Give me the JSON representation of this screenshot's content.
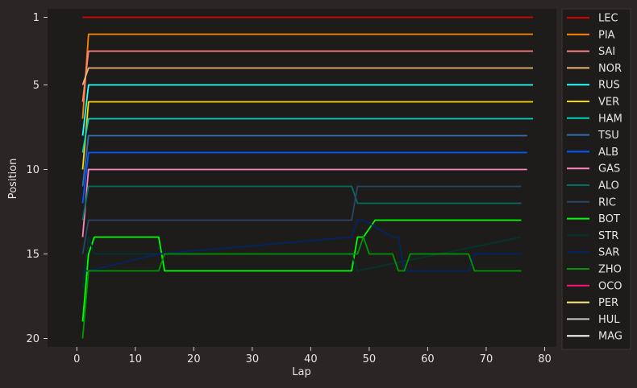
{
  "chart_data": {
    "type": "line",
    "title": "",
    "xlabel": "Lap",
    "ylabel": "Position",
    "xlim": [
      -5,
      82
    ],
    "ylim": [
      20.5,
      0.5
    ],
    "y_inverted": true,
    "xticks": [
      0,
      10,
      20,
      30,
      40,
      50,
      60,
      70,
      80
    ],
    "yticks": [
      1,
      5,
      10,
      15,
      20
    ],
    "grid": false,
    "legend": "outside-right",
    "background": "#1e1c1b",
    "figure_background": "#292625",
    "series": [
      {
        "name": "LEC",
        "color": "#dc0000",
        "points": [
          [
            1,
            1
          ],
          [
            78,
            1
          ]
        ]
      },
      {
        "name": "PIA",
        "color": "#ff8700",
        "points": [
          [
            1,
            7
          ],
          [
            2,
            2
          ],
          [
            78,
            2
          ]
        ]
      },
      {
        "name": "SAI",
        "color": "#ff8181",
        "points": [
          [
            1,
            6
          ],
          [
            2,
            3
          ],
          [
            78,
            3
          ]
        ]
      },
      {
        "name": "NOR",
        "color": "#eeb370",
        "points": [
          [
            1,
            5
          ],
          [
            2,
            4
          ],
          [
            78,
            4
          ]
        ]
      },
      {
        "name": "RUS",
        "color": "#24ffff",
        "points": [
          [
            1,
            8
          ],
          [
            2,
            5
          ],
          [
            78,
            5
          ]
        ]
      },
      {
        "name": "VER",
        "color": "#fcd700",
        "points": [
          [
            1,
            10
          ],
          [
            2,
            6
          ],
          [
            78,
            6
          ]
        ]
      },
      {
        "name": "HAM",
        "color": "#00d2be",
        "points": [
          [
            1,
            9
          ],
          [
            2,
            7
          ],
          [
            78,
            7
          ]
        ]
      },
      {
        "name": "TSU",
        "color": "#356cac",
        "points": [
          [
            1,
            11
          ],
          [
            2,
            8
          ],
          [
            77,
            8
          ]
        ]
      },
      {
        "name": "ALB",
        "color": "#005aff",
        "points": [
          [
            1,
            12
          ],
          [
            2,
            9
          ],
          [
            77,
            9
          ]
        ]
      },
      {
        "name": "GAS",
        "color": "#fe86bc",
        "points": [
          [
            1,
            14
          ],
          [
            2,
            10
          ],
          [
            77,
            10
          ]
        ]
      },
      {
        "name": "ALO",
        "color": "#006f62",
        "points": [
          [
            1,
            13
          ],
          [
            2,
            11
          ],
          [
            47,
            11
          ],
          [
            48,
            12
          ],
          [
            76,
            12
          ]
        ]
      },
      {
        "name": "RIC",
        "color": "#2b4562",
        "points": [
          [
            1,
            15
          ],
          [
            2,
            13
          ],
          [
            3,
            13
          ],
          [
            47,
            13
          ],
          [
            48,
            11
          ],
          [
            76,
            11
          ]
        ]
      },
      {
        "name": "BOT",
        "color": "#00ff00",
        "points": [
          [
            1,
            19
          ],
          [
            2,
            15
          ],
          [
            3,
            14
          ],
          [
            14,
            14
          ],
          [
            15,
            16
          ],
          [
            47,
            16
          ],
          [
            48,
            14
          ],
          [
            49,
            14
          ],
          [
            51,
            13
          ],
          [
            76,
            13
          ]
        ]
      },
      {
        "name": "STR",
        "color": "#00352f",
        "points": [
          [
            1,
            17
          ],
          [
            2,
            14
          ],
          [
            3,
            15
          ],
          [
            47,
            15
          ],
          [
            48,
            16
          ],
          [
            76,
            14
          ]
        ]
      },
      {
        "name": "SAR",
        "color": "#012564",
        "points": [
          [
            1,
            16
          ],
          [
            2,
            16
          ],
          [
            14,
            15
          ],
          [
            47,
            14
          ],
          [
            48,
            13
          ],
          [
            49,
            13
          ],
          [
            54,
            14
          ],
          [
            55,
            14
          ],
          [
            56,
            16
          ],
          [
            67,
            16
          ],
          [
            68,
            15
          ],
          [
            76,
            15
          ]
        ]
      },
      {
        "name": "ZHO",
        "color": "#009800",
        "points": [
          [
            1,
            20
          ],
          [
            2,
            16
          ],
          [
            14,
            16
          ],
          [
            15,
            15
          ],
          [
            47,
            15
          ],
          [
            48,
            15
          ],
          [
            49,
            14
          ],
          [
            50,
            15
          ],
          [
            54,
            15
          ],
          [
            55,
            16
          ],
          [
            56,
            16
          ],
          [
            57,
            15
          ],
          [
            67,
            15
          ],
          [
            68,
            16
          ],
          [
            76,
            16
          ]
        ]
      },
      {
        "name": "OCO",
        "color": "#ff117c",
        "points": []
      },
      {
        "name": "PER",
        "color": "#ffec7b",
        "points": []
      },
      {
        "name": "HUL",
        "color": "#cacaca",
        "points": []
      },
      {
        "name": "MAG",
        "color": "#ffffff",
        "points": []
      }
    ]
  }
}
